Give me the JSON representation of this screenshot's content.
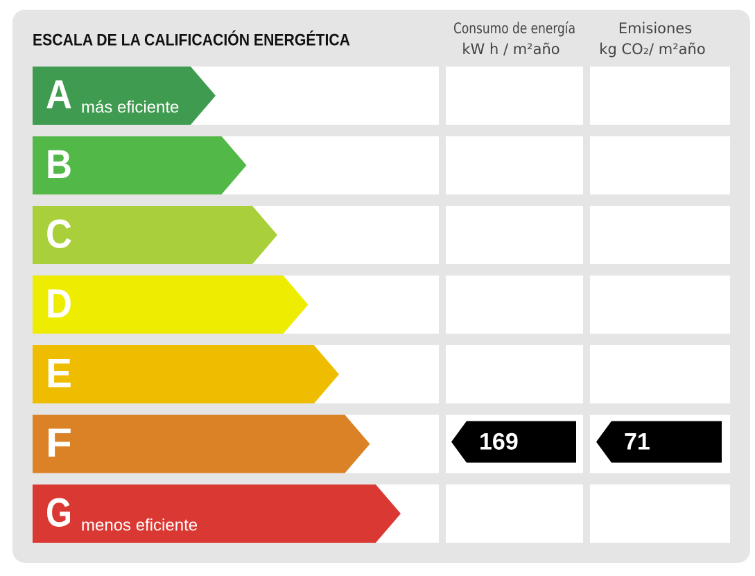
{
  "header": {
    "title": "ESCALA DE LA CALIFICACIÓN ENERGÉTICA",
    "columns": [
      {
        "line1": "Consumo de energía",
        "line2": "kW h / m²año"
      },
      {
        "line1": "Emisiones",
        "line2": "kg CO₂/ m²año"
      }
    ]
  },
  "rows": [
    {
      "letter": "A",
      "note": "más eficiente",
      "color": "#3f9b4f"
    },
    {
      "letter": "B",
      "color": "#52b848"
    },
    {
      "letter": "C",
      "color": "#a9cf3a"
    },
    {
      "letter": "D",
      "color": "#eeec00"
    },
    {
      "letter": "E",
      "color": "#efbd00"
    },
    {
      "letter": "F",
      "color": "#db8227",
      "consumption": 169,
      "emissions": 71
    },
    {
      "letter": "G",
      "note": "menos eficiente",
      "color": "#da3833"
    }
  ]
}
